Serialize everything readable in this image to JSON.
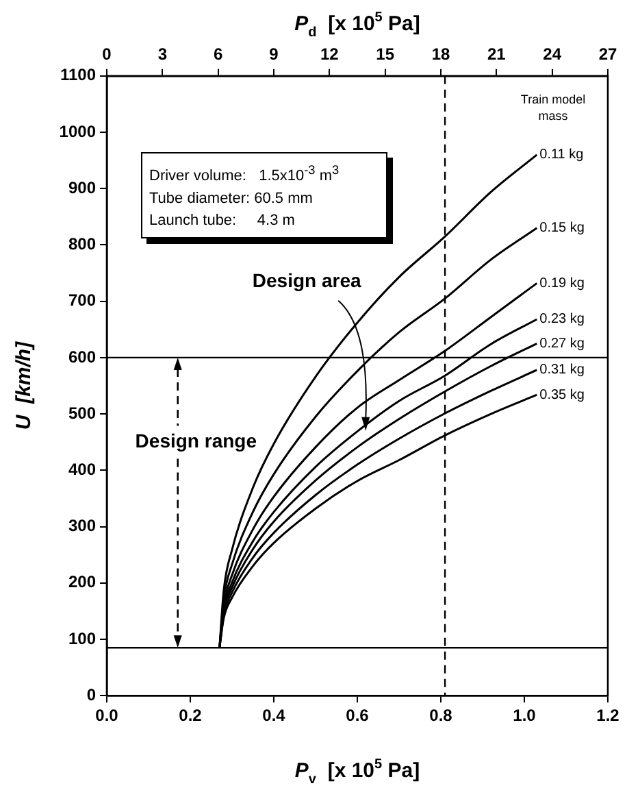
{
  "chart_data": {
    "type": "line",
    "xlabel": "P$_{v}$  [x 10$^{5}$ Pa]",
    "x2label": "P$_{d}$  [x 10$^{5}$ Pa]",
    "ylabel": "U  [km/h]",
    "x": [
      0.27,
      0.28,
      0.3,
      0.35,
      0.4,
      0.5,
      0.6,
      0.7,
      0.81,
      0.92,
      1.03
    ],
    "series": [
      {
        "name": "0.11 kg",
        "color": "#000000",
        "values": [
          85,
          186,
          259,
          369,
          447,
          566,
          662,
          743,
          815,
          894,
          960
        ]
      },
      {
        "name": "0.15 kg",
        "color": "#000000",
        "values": [
          85,
          171,
          233,
          326,
          393,
          495,
          576,
          645,
          705,
          774,
          830
        ]
      },
      {
        "name": "0.19 kg",
        "color": "#000000",
        "values": [
          85,
          159,
          214,
          295,
          353,
          441,
          511,
          560,
          612,
          672,
          732
        ]
      },
      {
        "name": "0.23 kg",
        "color": "#000000",
        "values": [
          85,
          152,
          201,
          274,
          326,
          406,
          469,
          523,
          568,
          624,
          668
        ]
      },
      {
        "name": "0.27 kg",
        "color": "#000000",
        "values": [
          85,
          147,
          192,
          260,
          309,
          382,
          441,
          491,
          540,
          585,
          625
        ]
      },
      {
        "name": "0.31 kg",
        "color": "#000000",
        "values": [
          85,
          142,
          183,
          245,
          289,
          356,
          410,
          456,
          501,
          541,
          578
        ]
      },
      {
        "name": "0.35 kg",
        "color": "#000000",
        "values": [
          85,
          137,
          174,
          230,
          271,
          332,
          381,
          418,
          462,
          500,
          534
        ]
      }
    ],
    "xlim": [
      0,
      1.2
    ],
    "xticks": [
      {
        "value": 0,
        "label": "0.0"
      },
      0.2,
      0.4,
      0.6,
      0.8,
      {
        "value": 1,
        "label": "1.0"
      },
      1.2
    ],
    "x2lim": [
      0,
      27
    ],
    "x2ticks": [
      0,
      3,
      6,
      9,
      12,
      15,
      18,
      21,
      24,
      27
    ],
    "ylim": [
      0,
      1100
    ],
    "yticks": [
      0,
      100,
      200,
      300,
      400,
      500,
      600,
      700,
      800,
      900,
      1000,
      1100
    ],
    "ref_lines": [
      {
        "axis": "y",
        "value": 600
      },
      {
        "axis": "y",
        "value": 85
      },
      {
        "axis": "x",
        "value": 0.81,
        "line_style": "dashed"
      }
    ],
    "annotations": [
      "Driver volume:   1.5x10$^{-3}$ m$^{3}$",
      "Tube diameter: 60.5 mm",
      "Launch tube:     4.3 m",
      "Train model\nmass",
      {
        "text": "Design area",
        "x": 0.62,
        "y": 470
      },
      {
        "text": "Design range",
        "x": 0.17,
        "y": 600
      }
    ],
    "marker": "none",
    "line_style": "solid",
    "legend": false
  }
}
